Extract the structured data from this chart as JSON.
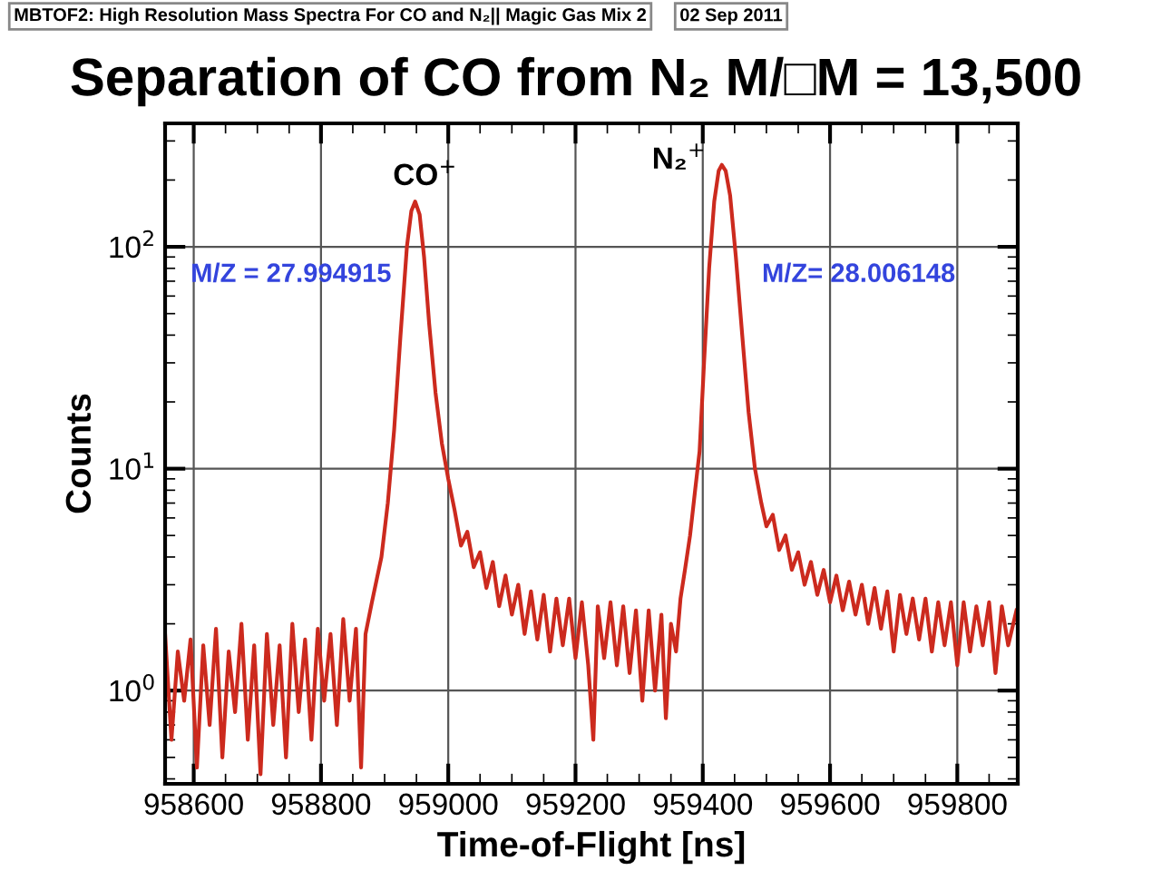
{
  "chart_data": {
    "type": "line",
    "title": "Separation of CO from N₂ M/□M = 13,500",
    "xlabel": "Time-of-Flight [ns]",
    "ylabel": "Counts",
    "annotations": [
      "MBTOF2: High Resolution Mass Spectra For CO and N₂|| Magic Gas Mix 2",
      "02 Sep 2011",
      {
        "text": "CO$^{+}$",
        "x": 958948,
        "y": 160
      },
      {
        "text": "N₂$^{+}$",
        "x": 959430,
        "y": 234
      },
      "M/Z = 27.994915",
      "M/Z= 28.006148"
    ],
    "log": "y",
    "grid": true,
    "marker": "none",
    "line_style": "solid",
    "xlim": [
      958555,
      959895
    ],
    "xticks": [
      958600,
      958800,
      959000,
      959200,
      959400,
      959600,
      959800
    ],
    "ylim": [
      0.38,
      360
    ],
    "yticks": [
      {
        "value": 1,
        "label": "10$^{0}$"
      },
      {
        "value": 10,
        "label": "10$^{1}$"
      },
      {
        "value": 100,
        "label": "10$^{2}$"
      }
    ],
    "series": [
      {
        "color": "#cc2a1e",
        "x": [
          958555,
          958565,
          958575,
          958585,
          958595,
          958605,
          958615,
          958625,
          958635,
          958645,
          958655,
          958665,
          958675,
          958685,
          958695,
          958705,
          958715,
          958725,
          958735,
          958745,
          958755,
          958765,
          958775,
          958785,
          958795,
          958805,
          958815,
          958825,
          958835,
          958845,
          958855,
          958863,
          958870,
          958880,
          958895,
          958905,
          958915,
          958925,
          958935,
          958942,
          958948,
          958955,
          958962,
          958970,
          958980,
          958990,
          959000,
          959010,
          959020,
          959030,
          959040,
          959050,
          959060,
          959070,
          959080,
          959090,
          959100,
          959110,
          959120,
          959130,
          959140,
          959150,
          959160,
          959170,
          959180,
          959190,
          959200,
          959210,
          959220,
          959228,
          959235,
          959245,
          959255,
          959265,
          959275,
          959285,
          959295,
          959305,
          959315,
          959325,
          959335,
          959342,
          959350,
          959358,
          959365,
          959372,
          959380,
          959388,
          959395,
          959402,
          959410,
          959418,
          959425,
          959430,
          959436,
          959443,
          959452,
          959462,
          959472,
          959482,
          959492,
          959500,
          959510,
          959520,
          959530,
          959540,
          959550,
          959560,
          959570,
          959580,
          959590,
          959600,
          959610,
          959620,
          959630,
          959640,
          959650,
          959660,
          959670,
          959680,
          959690,
          959700,
          959710,
          959720,
          959730,
          959740,
          959750,
          959760,
          959770,
          959780,
          959790,
          959800,
          959810,
          959820,
          959830,
          959840,
          959850,
          959860,
          959870,
          959880,
          959893
        ],
        "values": [
          1.8,
          0.6,
          1.5,
          0.9,
          1.7,
          0.45,
          1.6,
          0.7,
          1.9,
          0.5,
          1.5,
          0.8,
          2.0,
          0.6,
          1.6,
          0.42,
          1.8,
          0.7,
          1.6,
          0.5,
          2.0,
          0.8,
          1.7,
          0.6,
          1.9,
          0.9,
          1.8,
          0.7,
          2.1,
          0.9,
          1.9,
          0.45,
          1.8,
          2.5,
          4,
          7,
          15,
          40,
          100,
          145,
          160,
          140,
          90,
          45,
          22,
          13,
          9,
          6.5,
          4.5,
          5.2,
          3.6,
          4.2,
          2.9,
          3.8,
          2.4,
          3.3,
          2.2,
          3.0,
          1.8,
          2.8,
          1.7,
          2.7,
          1.5,
          2.6,
          1.6,
          2.6,
          1.4,
          2.5,
          1.3,
          0.6,
          2.4,
          1.4,
          2.5,
          1.3,
          2.4,
          1.2,
          2.3,
          0.9,
          2.3,
          1.0,
          2.2,
          0.75,
          2.0,
          1.5,
          2.6,
          3.5,
          5,
          8,
          12,
          30,
          80,
          160,
          220,
          234,
          220,
          170,
          90,
          40,
          18,
          10,
          7,
          5.5,
          6.2,
          4.3,
          5.0,
          3.5,
          4.2,
          3.0,
          3.8,
          2.7,
          3.5,
          2.5,
          3.3,
          2.3,
          3.1,
          2.2,
          3.0,
          2.0,
          2.9,
          1.9,
          2.8,
          1.5,
          2.7,
          1.8,
          2.6,
          1.7,
          2.6,
          1.5,
          2.5,
          1.6,
          2.5,
          1.3,
          2.5,
          1.5,
          2.4,
          1.6,
          2.5,
          1.2,
          2.4,
          1.6,
          2.3
        ]
      }
    ]
  }
}
